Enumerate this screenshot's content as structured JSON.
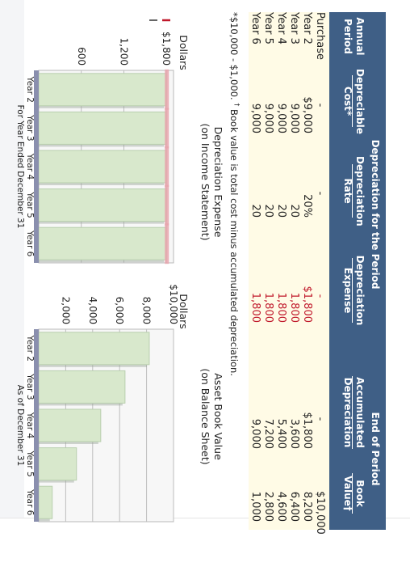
{
  "table": {
    "group_left": "Depreciation for the Period",
    "group_right": "End of Period",
    "columns": [
      "Annual Period",
      "Depreciable Cost*",
      "Depreciation Rate",
      "Depreciation Expense",
      "Accumulated Depreciation",
      "Book Value†"
    ],
    "rows": [
      [
        "Purchase",
        "-",
        "-",
        "-",
        "-",
        "$10,000"
      ],
      [
        "Year 2",
        "$9,000",
        "20%",
        "$1,800",
        "$1,800",
        "8,200"
      ],
      [
        "Year 3",
        "9,000",
        "20",
        "1,800",
        "3,600",
        "6,400"
      ],
      [
        "Year 4",
        "9,000",
        "20",
        "1,800",
        "5,400",
        "4,600"
      ],
      [
        "Year 5",
        "9,000",
        "20",
        "1,800",
        "7,200",
        "2,800"
      ],
      [
        "Year 6",
        "9,000",
        "20",
        "1,800",
        "9,000",
        "1,000"
      ]
    ],
    "highlight_color": "#c0182b",
    "header_color": "#3f5f86",
    "body_color": "#fffbe6"
  },
  "footnote": {
    "text": "*$10,000 - $1,000.",
    "mark": "†",
    "rest": " Book value is total cost minus accumulated depreciation."
  },
  "chart_data": [
    {
      "type": "bar",
      "title": "Depreciation Expense",
      "subtitle": "(on Income Statement)",
      "ylabel": "Dollars",
      "xlabel": "For Year Ended December 31",
      "categories": [
        "Year 2",
        "Year 3",
        "Year 4",
        "Year 5",
        "Year 6"
      ],
      "values": [
        1800,
        1800,
        1800,
        1800,
        1800
      ],
      "yticks": [
        {
          "v": 600,
          "t": "600"
        },
        {
          "v": 1200,
          "t": "1,200"
        },
        {
          "v": 1800,
          "t": "$1,800"
        }
      ],
      "ylim": [
        0,
        1900
      ],
      "bar_color": "#d8e8cc",
      "accent_color": "#c0182b",
      "grid": true
    },
    {
      "type": "bar",
      "title": "Asset Book Value",
      "subtitle": "(on Balance Sheet)",
      "ylabel": "Dollars",
      "xlabel": "As of December 31",
      "categories": [
        "Year 2",
        "Year 3",
        "Year 4",
        "Year 5",
        "Year 6"
      ],
      "values": [
        8200,
        6400,
        4600,
        2800,
        1000
      ],
      "yticks": [
        {
          "v": 2000,
          "t": "2,000"
        },
        {
          "v": 4000,
          "t": "4,000"
        },
        {
          "v": 6000,
          "t": "6,000"
        },
        {
          "v": 8000,
          "t": "8,000"
        },
        {
          "v": 10000,
          "t": "$10,000"
        }
      ],
      "ylim": [
        0,
        10000
      ],
      "bar_color": "#d8e8cc",
      "grid": true
    }
  ]
}
